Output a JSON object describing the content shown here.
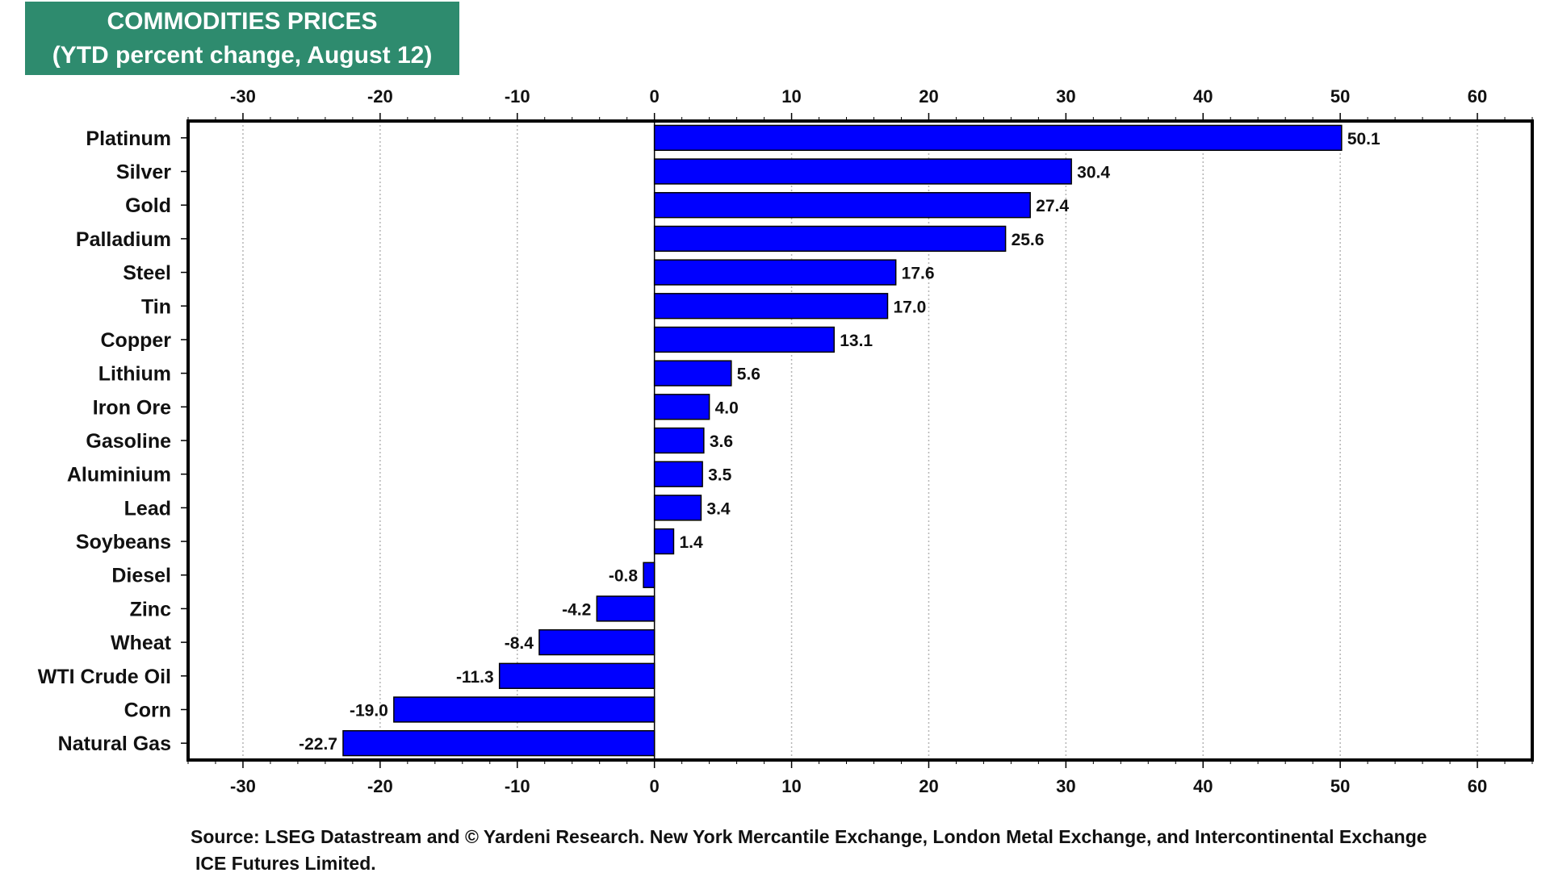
{
  "header": {
    "title_line1": "COMMODITIES PRICES",
    "title_line2": "(YTD percent change, August 12)",
    "title_bg": "#2e8b6e"
  },
  "chart_data": {
    "type": "bar",
    "orientation": "horizontal",
    "categories": [
      "Platinum",
      "Silver",
      "Gold",
      "Palladium",
      "Steel",
      "Tin",
      "Copper",
      "Lithium",
      "Iron Ore",
      "Gasoline",
      "Aluminium",
      "Lead",
      "Soybeans",
      "Diesel",
      "Zinc",
      "Wheat",
      "WTI Crude Oil",
      "Corn",
      "Natural Gas"
    ],
    "values": [
      50.1,
      30.4,
      27.4,
      25.6,
      17.6,
      17.0,
      13.1,
      5.6,
      4.0,
      3.6,
      3.5,
      3.4,
      1.4,
      -0.8,
      -4.2,
      -8.4,
      -11.3,
      -19.0,
      -22.7
    ],
    "value_labels": [
      "50.1",
      "30.4",
      "27.4",
      "25.6",
      "17.6",
      "17.0",
      "13.1",
      "5.6",
      "4.0",
      "3.6",
      "3.5",
      "3.4",
      "1.4",
      "-0.8",
      "-4.2",
      "-8.4",
      "-11.3",
      "-19.0",
      "-22.7"
    ],
    "xlim": [
      -34,
      64
    ],
    "xticks": [
      -30,
      -20,
      -10,
      0,
      10,
      20,
      30,
      40,
      50,
      60
    ],
    "xtick_labels": [
      "-30",
      "-20",
      "-10",
      "0",
      "10",
      "20",
      "30",
      "40",
      "50",
      "60"
    ],
    "grid": "vertical dotted",
    "bar_color": "#0000ff",
    "bar_edge_color": "#000000"
  },
  "footer": {
    "source_line1": "Source: LSEG Datastream and © Yardeni Research. New York Mercantile Exchange, London Metal Exchange, and Intercontinental Exchange",
    "source_line2": "ICE Futures Limited."
  }
}
